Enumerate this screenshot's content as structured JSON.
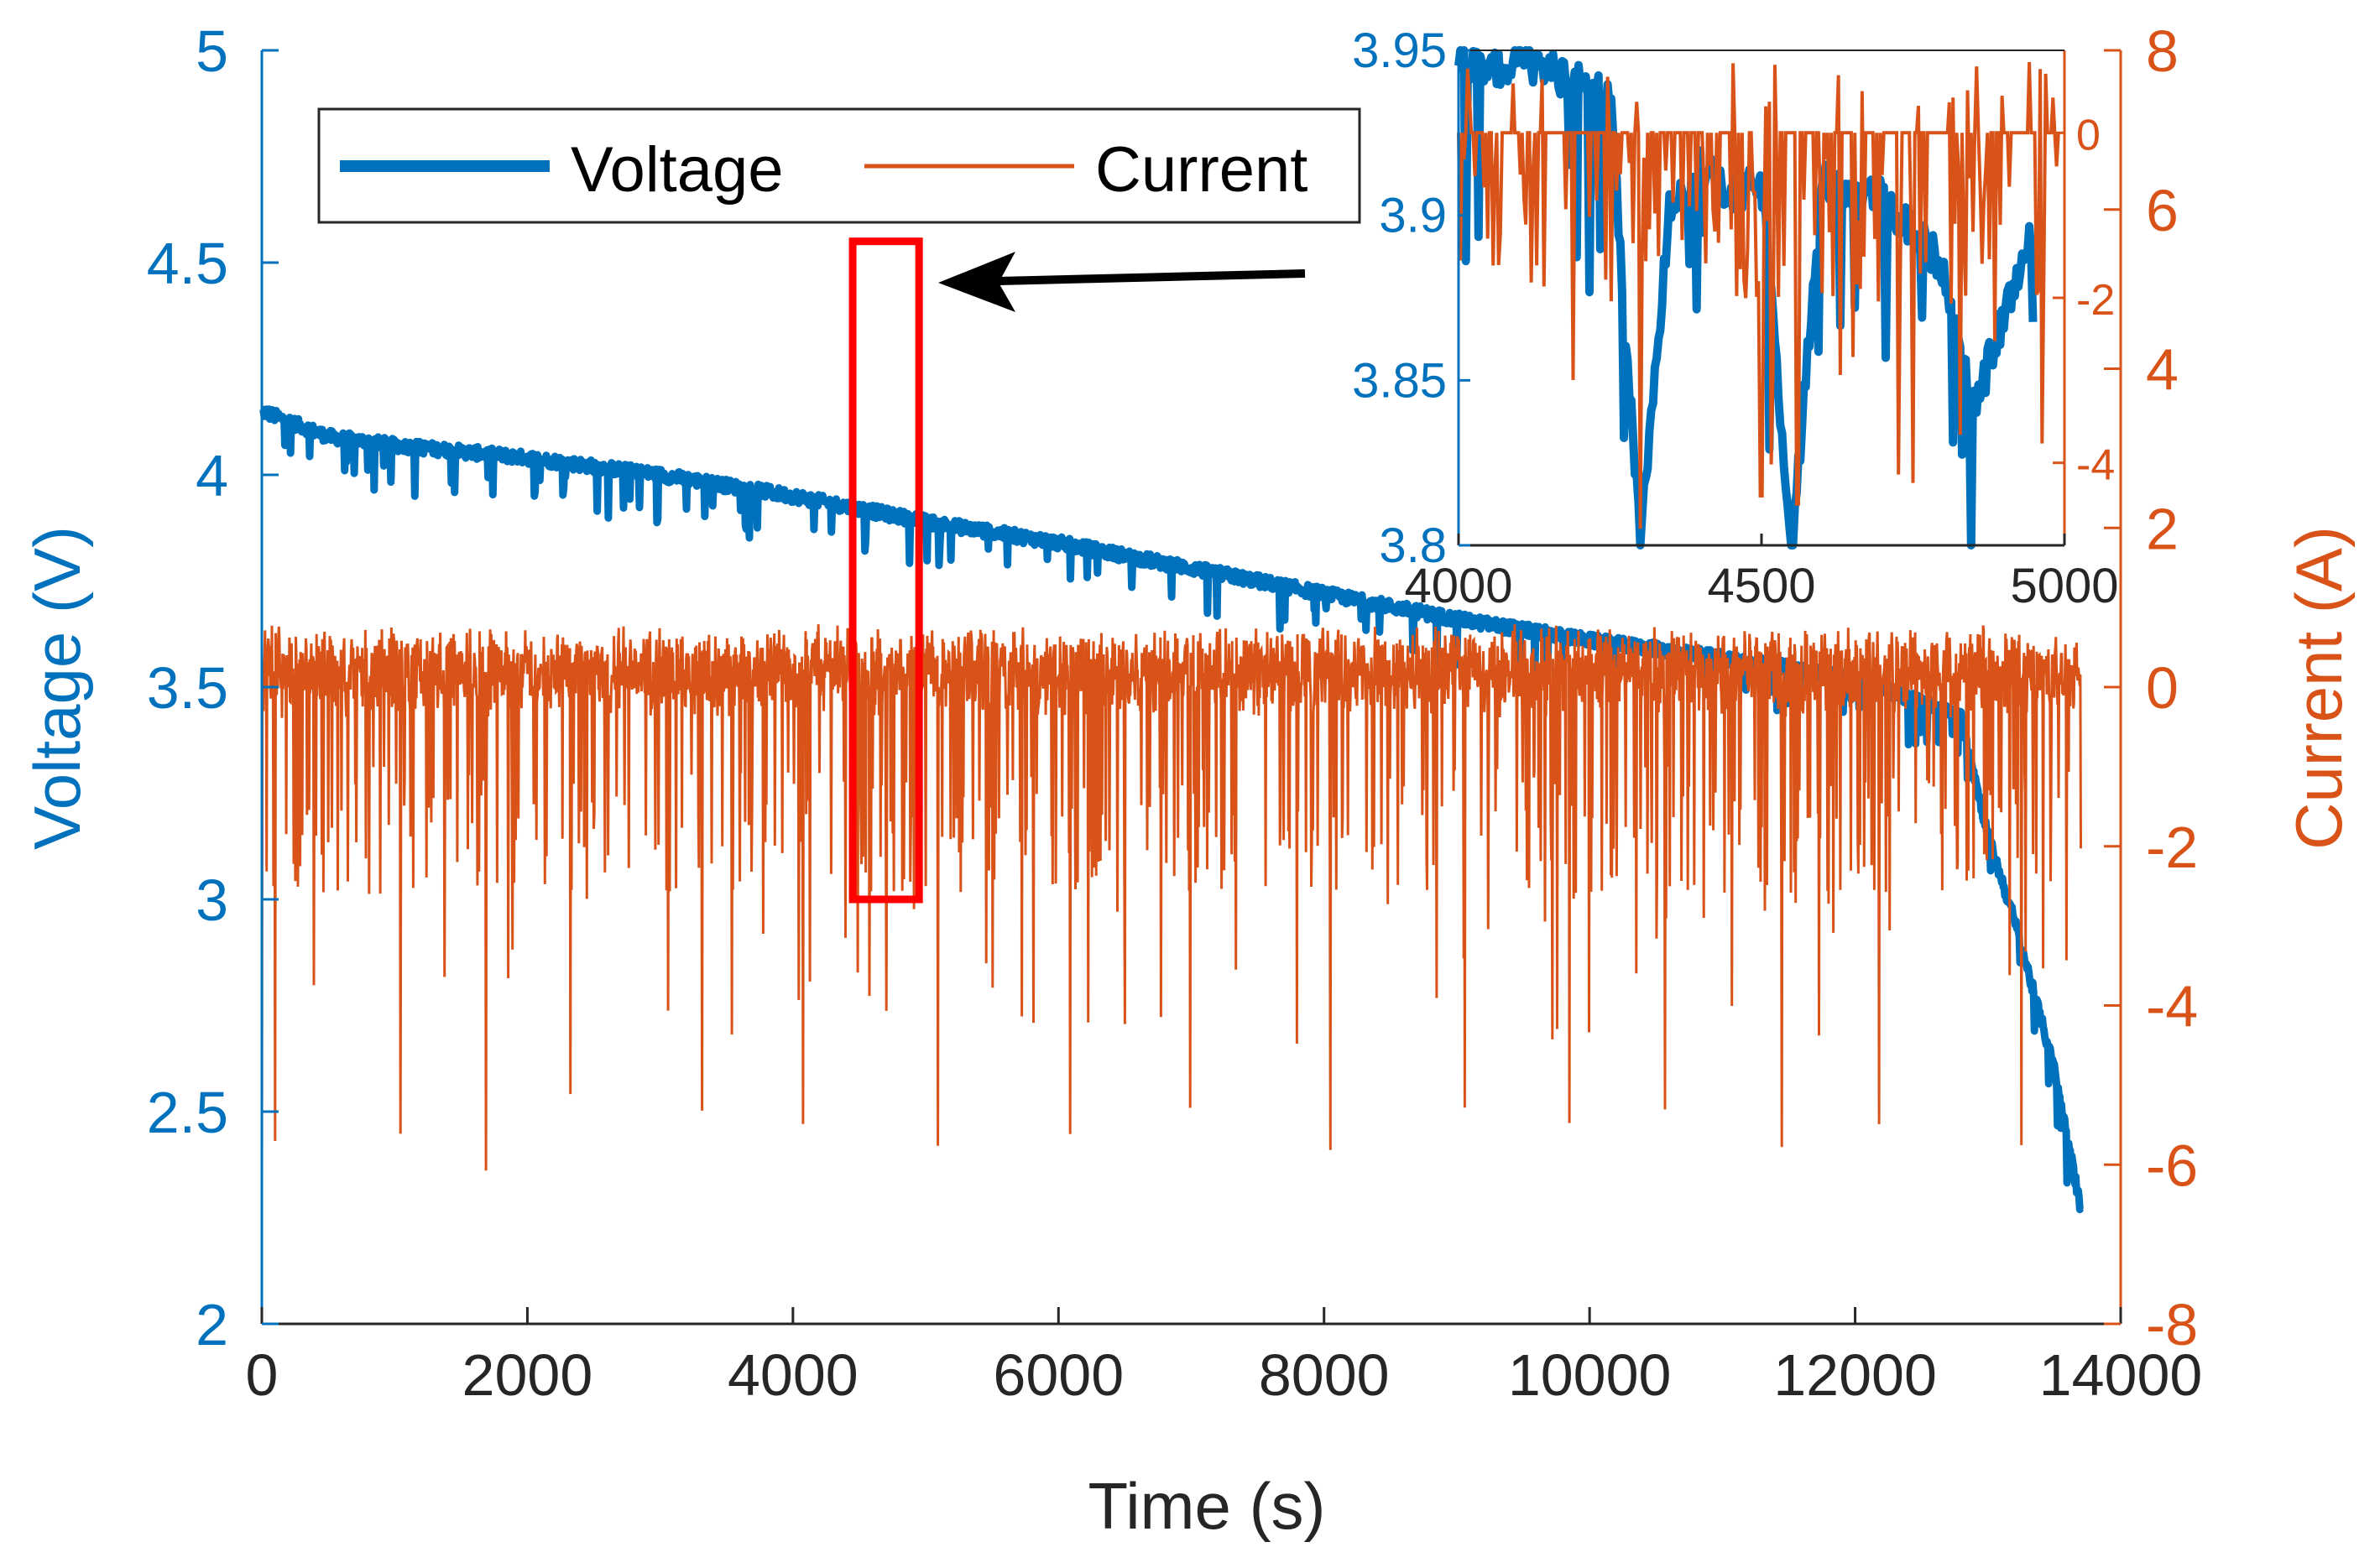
{
  "chart_data": {
    "type": "line",
    "xlabel": "Time (s)",
    "ylabel_left": "Voltage (V)",
    "ylabel_right": "Current (A)",
    "xlim": [
      0,
      14000
    ],
    "ylim_left": [
      2,
      5
    ],
    "ylim_right": [
      -8,
      8
    ],
    "x_ticks": [
      "0",
      "2000",
      "4000",
      "6000",
      "8000",
      "10000",
      "12000",
      "14000"
    ],
    "y_left_ticks": [
      "2",
      "2.5",
      "3",
      "3.5",
      "4",
      "4.5",
      "5"
    ],
    "y_right_ticks": [
      "-8",
      "-6",
      "-4",
      "-2",
      "0",
      "2",
      "4",
      "6",
      "8"
    ],
    "colors": {
      "voltage": "#0072BD",
      "current": "#D95319",
      "highlight": "#FF0000",
      "arrow": "#000000"
    },
    "legend": {
      "position": "top-left",
      "entries": [
        "Voltage",
        "Current"
      ]
    },
    "series": [
      {
        "name": "Voltage",
        "axis": "left",
        "x": [
          0,
          500,
          1000,
          2000,
          3000,
          4000,
          5000,
          6000,
          7000,
          8000,
          9000,
          10000,
          11000,
          12000,
          12800,
          13000,
          13200,
          13500,
          13700
        ],
        "values": [
          4.15,
          4.09,
          4.07,
          4.04,
          4.0,
          3.95,
          3.89,
          3.84,
          3.78,
          3.72,
          3.66,
          3.61,
          3.57,
          3.52,
          3.43,
          3.15,
          2.95,
          2.6,
          2.27
        ],
        "noise": "dips of about 0.1 V at load pulses"
      },
      {
        "name": "Current",
        "axis": "right",
        "x_range": [
          0,
          13700
        ],
        "baseline": 0,
        "spike_range": [
          0.8,
          -2.5
        ],
        "periodic_dips": [
          -5.0,
          -6.2
        ],
        "dip_period": 1380,
        "first_point": -6.2,
        "note": "dense oscillating drive-cycle current profile"
      }
    ],
    "highlight_box": {
      "x_range": [
        4450,
        4950
      ],
      "y_range": [
        3.0,
        4.55
      ],
      "axis": "left"
    },
    "inset": {
      "type": "line",
      "xlim": [
        4000,
        5000
      ],
      "ylim_left": [
        3.8,
        3.95
      ],
      "ylim_right": [
        -5,
        1
      ],
      "x_ticks": [
        "4000",
        "4500",
        "5000"
      ],
      "y_left_ticks": [
        "3.8",
        "3.85",
        "3.9",
        "3.95"
      ],
      "y_right_ticks": [
        "-4",
        "-2",
        "0"
      ],
      "series": [
        {
          "name": "Voltage",
          "x": [
            4000,
            4050,
            4100,
            4200,
            4250,
            4300,
            4350,
            4400,
            4450,
            4500,
            4550,
            4600,
            4700,
            4800,
            4850,
            4900,
            4950
          ],
          "values": [
            3.945,
            3.943,
            3.948,
            3.94,
            3.935,
            3.8,
            3.905,
            3.915,
            3.905,
            3.91,
            3.8,
            3.91,
            3.905,
            3.885,
            3.84,
            3.87,
            3.895
          ]
        },
        {
          "name": "Current",
          "baseline": 0,
          "min_dips": [
            -4.8,
            -4.4,
            -4.5
          ],
          "dip_x": [
            4300,
            4500,
            4560
          ]
        }
      ]
    }
  }
}
